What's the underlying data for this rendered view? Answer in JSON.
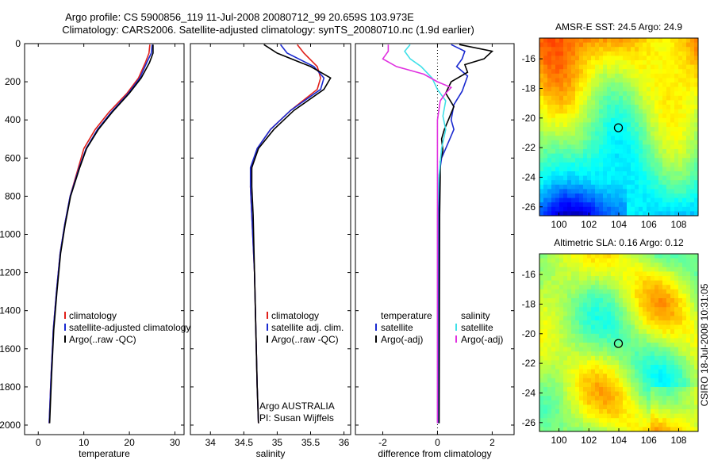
{
  "header": {
    "title_line1": "Argo profile: CS 5900856_119 11-Jul-2008 20080712_99 20.659S 103.973E",
    "title_line2": "Climatology: CARS2006. Satellite-adjusted climatology: synTS_20080710.nc (1.9d earlier)"
  },
  "side_stamp": "CSIRO 18-Jul-2008 10:31:05",
  "colors": {
    "climatology": "#e0201a",
    "satellite": "#1a2ad0",
    "argo": "#000000",
    "sat_sal": "#40e0e8",
    "argo_sal": "#e030e0"
  },
  "chart_data": [
    {
      "type": "line",
      "xlabel": "temperature",
      "ylim": [
        0,
        2050
      ],
      "y_reversed": true,
      "xlim": [
        -3,
        32
      ],
      "xticks": [
        0,
        10,
        20,
        30
      ],
      "yticks": [
        0,
        200,
        400,
        600,
        800,
        1000,
        1200,
        1400,
        1600,
        1800,
        2000
      ],
      "legend": [
        "climatology",
        "satellite-adjusted climatology",
        "Argo(..raw -QC)"
      ],
      "series": [
        {
          "name": "climatology",
          "color": "#e0201a",
          "x": [
            24.5,
            24.3,
            23.5,
            22,
            19.5,
            15.5,
            12.5,
            10,
            8.8,
            7,
            5.8,
            4.8,
            4,
            3.3,
            2.8,
            2.4
          ],
          "y": [
            5,
            50,
            100,
            180,
            260,
            360,
            450,
            550,
            650,
            800,
            950,
            1100,
            1300,
            1500,
            1750,
            1990
          ]
        },
        {
          "name": "satellite-adjusted climatology",
          "color": "#1a2ad0",
          "x": [
            25,
            24.8,
            23.8,
            22.3,
            19.8,
            16,
            13,
            10.5,
            9,
            7,
            5.8,
            4.8,
            4,
            3.3,
            2.8,
            2.4
          ],
          "y": [
            5,
            50,
            100,
            180,
            260,
            360,
            450,
            550,
            650,
            800,
            950,
            1100,
            1300,
            1500,
            1750,
            1990
          ]
        },
        {
          "name": "Argo(..raw -QC)",
          "color": "#000000",
          "x": [
            25.2,
            25.2,
            24.4,
            22.6,
            20,
            16.2,
            13.2,
            10.6,
            9.1,
            7.1,
            5.9,
            4.9,
            4.1,
            3.4,
            2.9,
            2.5
          ],
          "y": [
            5,
            50,
            100,
            180,
            260,
            360,
            450,
            550,
            650,
            800,
            950,
            1100,
            1300,
            1500,
            1750,
            1990
          ]
        }
      ]
    },
    {
      "type": "line",
      "xlabel": "salinity",
      "ylim": [
        0,
        2050
      ],
      "y_reversed": true,
      "xlim": [
        33.7,
        36.1
      ],
      "xticks": [
        34,
        34.5,
        35,
        35.5,
        36
      ],
      "legend": [
        "climatology",
        "satellite adj. clim.",
        "Argo(..raw -QC)"
      ],
      "annotation": [
        "Argo AUSTRALIA",
        "PI: Susan Wijffels"
      ],
      "series": [
        {
          "name": "climatology",
          "color": "#e0201a",
          "x": [
            35.3,
            35.4,
            35.6,
            35.65,
            35.6,
            35.2,
            34.9,
            34.7,
            34.62,
            34.6,
            34.62,
            34.66,
            34.68,
            34.7,
            34.72
          ],
          "y": [
            5,
            50,
            120,
            180,
            240,
            350,
            450,
            550,
            650,
            750,
            900,
            1200,
            1500,
            1800,
            1990
          ]
        },
        {
          "name": "satellite adj. clim.",
          "color": "#1a2ad0",
          "x": [
            35.05,
            35.15,
            35.55,
            35.7,
            35.65,
            35.2,
            34.9,
            34.7,
            34.6,
            34.6,
            34.62,
            34.66,
            34.68,
            34.7,
            34.72
          ],
          "y": [
            5,
            50,
            120,
            180,
            240,
            350,
            450,
            550,
            650,
            750,
            900,
            1200,
            1500,
            1800,
            1990
          ]
        },
        {
          "name": "Argo(..raw -QC)",
          "color": "#000000",
          "x": [
            34.8,
            35.0,
            35.5,
            35.8,
            35.7,
            35.25,
            34.95,
            34.72,
            34.62,
            34.62,
            34.64,
            34.66,
            34.68,
            34.7,
            34.72
          ],
          "y": [
            5,
            50,
            120,
            180,
            240,
            350,
            450,
            550,
            650,
            750,
            900,
            1200,
            1500,
            1800,
            1990
          ]
        }
      ]
    },
    {
      "type": "line",
      "xlabel": "difference from climatology",
      "ylim": [
        0,
        2050
      ],
      "y_reversed": true,
      "xlim": [
        -3,
        2.8
      ],
      "xticks": [
        -2,
        0,
        2
      ],
      "legend_left": [
        "temperature",
        "satellite",
        "Argo(-adj)"
      ],
      "legend_right": [
        "salinity",
        "satellite",
        "Argo(-adj)"
      ],
      "series": [
        {
          "name": "temperature satellite",
          "color": "#1a2ad0",
          "x": [
            0.5,
            1.0,
            0.9,
            0.7,
            1.1,
            0.9,
            0.6,
            0.5,
            0.6,
            0.45,
            0.3,
            0.15,
            0.1,
            0.05,
            0.05,
            0.04,
            0.04
          ],
          "y": [
            5,
            40,
            80,
            120,
            170,
            250,
            320,
            400,
            450,
            500,
            550,
            600,
            650,
            700,
            850,
            1300,
            1990
          ]
        },
        {
          "name": "temperature Argo(-adj)",
          "color": "#000000",
          "x": [
            0.8,
            2.0,
            1.7,
            1.0,
            1.1,
            0.5,
            0.3,
            0.6,
            0.4,
            0.25,
            0.15,
            0.2,
            0.1,
            0.1,
            0.08,
            0.07,
            0.06
          ],
          "y": [
            5,
            40,
            80,
            110,
            150,
            200,
            260,
            330,
            400,
            450,
            500,
            560,
            620,
            700,
            900,
            1300,
            1990
          ]
        },
        {
          "name": "salinity satellite",
          "color": "#40e0e8",
          "x": [
            -1.0,
            -1.2,
            -1.0,
            -0.6,
            -0.2,
            0.0,
            0.3,
            0.2,
            0.3,
            0.15,
            0.05,
            0.0,
            0.0,
            0.0
          ],
          "y": [
            5,
            40,
            80,
            120,
            180,
            240,
            300,
            380,
            450,
            550,
            700,
            900,
            1300,
            1990
          ]
        },
        {
          "name": "salinity Argo(-adj)",
          "color": "#e030e0",
          "x": [
            -1.8,
            -1.8,
            -2.0,
            -1.5,
            -0.5,
            0.0,
            0.5,
            0.3,
            0.1,
            0.0,
            0.0,
            0.0,
            0.0
          ],
          "y": [
            5,
            40,
            80,
            120,
            160,
            200,
            230,
            260,
            300,
            400,
            600,
            1000,
            1990
          ]
        }
      ]
    },
    {
      "type": "heatmap",
      "title": "AMSR-E SST: 24.5 Argo: 24.9",
      "xlim": [
        98.7,
        109.3
      ],
      "ylim": [
        -26.6,
        -14.6
      ],
      "xticks": [
        100,
        102,
        104,
        106,
        108
      ],
      "yticks": [
        -16,
        -18,
        -20,
        -22,
        -24,
        -26
      ],
      "marker": [
        103.973,
        -20.659
      ]
    },
    {
      "type": "heatmap",
      "title": "Altimetric SLA: 0.16 Argo: 0.12",
      "xlim": [
        98.7,
        109.3
      ],
      "ylim": [
        -26.6,
        -14.6
      ],
      "xticks": [
        100,
        102,
        104,
        106,
        108
      ],
      "yticks": [
        -16,
        -18,
        -20,
        -22,
        -24,
        -26
      ],
      "marker": [
        103.973,
        -20.659
      ]
    }
  ]
}
